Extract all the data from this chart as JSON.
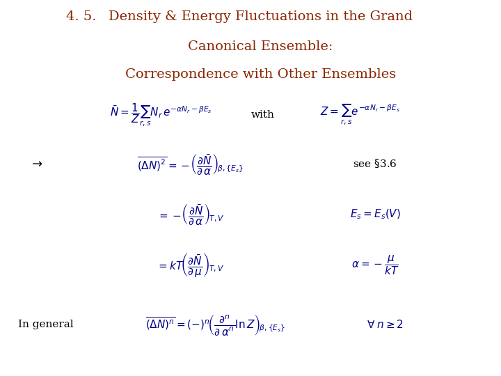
{
  "title_num": "4. 5.",
  "title_line1": "Density & Energy Fluctuations in the Grand",
  "title_line2": "Canonical Ensemble:",
  "title_line3": "Correspondence with Other Ensembles",
  "title_color": "#8B2500",
  "eq_color": "#00008B",
  "text_color": "#000000",
  "bg_color": "#FFFFFF",
  "eq1_left": "$\\bar{N} = \\dfrac{1}{Z}\\sum_{r,s} N_r\\, e^{-\\alpha N_r - \\beta E_s}$",
  "eq1_with": "with",
  "eq1_right": "$Z = \\sum_{r,s} e^{-\\alpha N_r - \\beta E_s}$",
  "arrow": "$\\rightarrow$",
  "eq2": "$\\overline{(\\Delta N)^2} = -\\!\\left(\\dfrac{\\partial\\bar{N}}{\\partial\\,\\alpha}\\right)_{\\!\\beta,\\{E_s\\}}$",
  "see": "see $\\S$3.6",
  "eq3": "$= -\\!\\left(\\dfrac{\\partial\\bar{N}}{\\partial\\,\\alpha}\\right)_{\\!T,V}$",
  "eq3_right": "$E_s = E_s(V)$",
  "eq4": "$= kT\\!\\left(\\dfrac{\\partial\\bar{N}}{\\partial\\,\\mu}\\right)_{\\!T,V}$",
  "eq4_right": "$\\alpha = -\\dfrac{\\mu}{kT}$",
  "in_general": "In general",
  "eq5": "$\\overline{(\\Delta N)^n} = (-)^n\\!\\left(\\dfrac{\\partial^n}{\\partial\\,\\alpha^n}\\ln Z\\right)_{\\!\\beta,\\{E_s\\}}$",
  "eq5_right": "$\\forall\\; n \\geq 2$"
}
